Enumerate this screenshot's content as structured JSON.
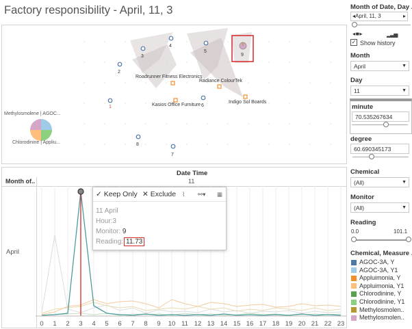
{
  "title": "Factory responsibility - April, 11, 3",
  "map": {
    "monitors": [
      "1",
      "2",
      "3",
      "4",
      "5",
      "6",
      "7",
      "8",
      "9"
    ],
    "factories": [
      "Roadrunner Fitness Electronics",
      "Radiance ColourTek",
      "Kasios Office Furniture",
      "Indigo Sol Boards"
    ],
    "pie_labels": [
      "Methylosmolene | AGOC...",
      "Chlorodinine | Appliu..."
    ]
  },
  "line": {
    "header_col": "Month of..",
    "header_title": "Date Time",
    "header_sub": "11",
    "row_label": "April",
    "x_ticks": [
      "0",
      "1",
      "2",
      "3",
      "4",
      "5",
      "6",
      "7",
      "8",
      "9",
      "10",
      "11",
      "12",
      "13",
      "14",
      "15",
      "16",
      "17",
      "18",
      "19",
      "20",
      "21",
      "22",
      "23"
    ]
  },
  "tooltip": {
    "keep_only": "Keep Only",
    "exclude": "Exclude",
    "date": "11 April",
    "hour_label": "Hour:",
    "hour_value": "3",
    "monitor_label": "Monitor:",
    "monitor_value": "9",
    "reading_label": "Reading:",
    "reading_value": "11.73"
  },
  "sidebar": {
    "page_title": "Month of Date, Day ..",
    "page_value": "April, 11, 3",
    "show_history": "Show history",
    "month_title": "Month",
    "month_value": "April",
    "day_title": "Day",
    "day_value": "11",
    "minute_title": "minute",
    "minute_value": "70.535267634",
    "degree_title": "degree",
    "degree_value": "60.690345173",
    "chemical_title": "Chemical",
    "chemical_value": "(All)",
    "monitor_title": "Monitor",
    "monitor_value": "(All)",
    "reading_title": "Reading",
    "reading_min": "0.0",
    "reading_max": "101.1",
    "legend_title": "Chemical, Measure ...",
    "legend": [
      {
        "label": "AGOC-3A, Y",
        "color": "#4e79a7"
      },
      {
        "label": "AGOC-3A, Y1",
        "color": "#a0cbe8"
      },
      {
        "label": "Appluimonia, Y",
        "color": "#f28e2b"
      },
      {
        "label": "Appluimonia, Y1",
        "color": "#ffbe7d"
      },
      {
        "label": "Chlorodinine, Y",
        "color": "#59a14f"
      },
      {
        "label": "Chlorodinine, Y1",
        "color": "#8cd17d"
      },
      {
        "label": "Methylosmolen..",
        "color": "#b6992d"
      },
      {
        "label": "Methylosmolen..",
        "color": "#d4a6c8"
      }
    ]
  }
}
